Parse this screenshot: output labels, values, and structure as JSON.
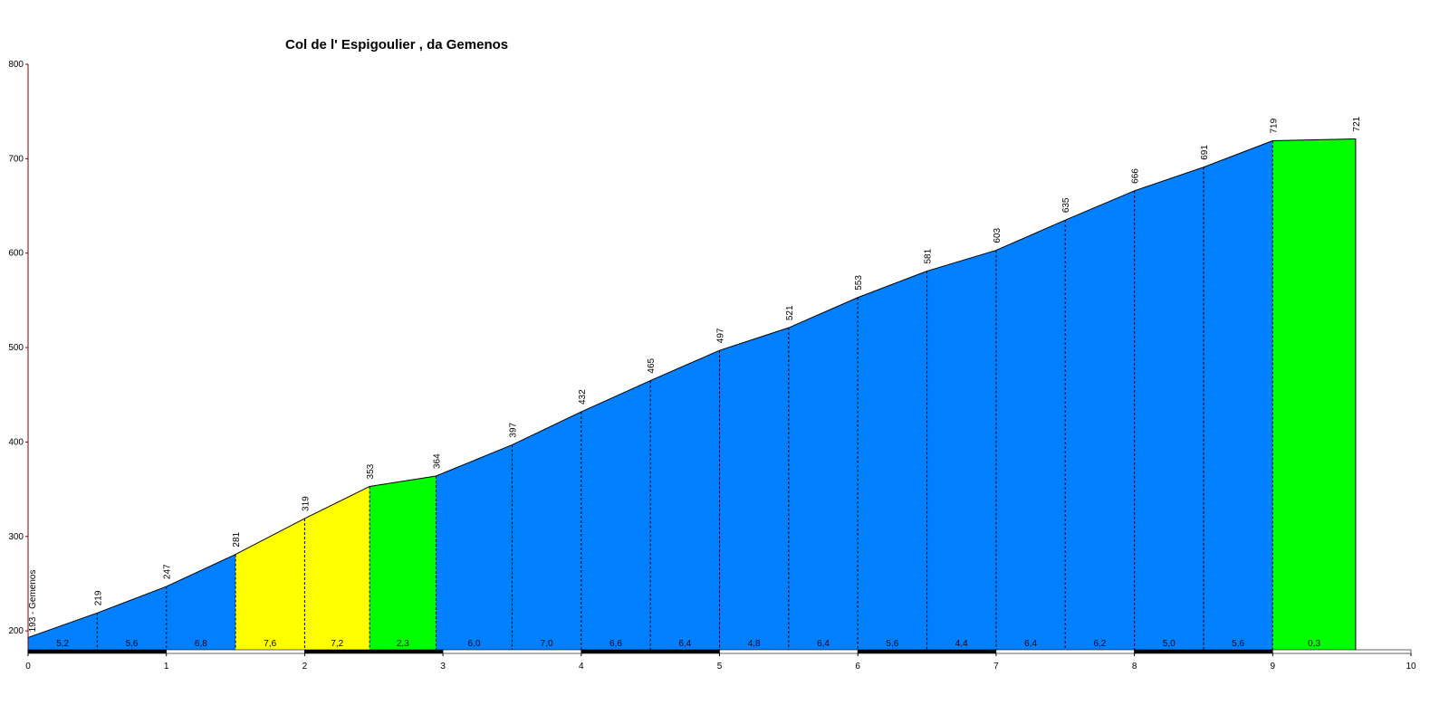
{
  "chart_data": {
    "type": "area",
    "title": "Col de l' Espigoulier , da Gemenos",
    "xlabel": "",
    "ylabel": "",
    "xlim": [
      0,
      10
    ],
    "ylim": [
      180,
      800
    ],
    "x_ticks": [
      "0",
      "1",
      "2",
      "3",
      "4",
      "5",
      "6",
      "7",
      "8",
      "9",
      "10"
    ],
    "y_ticks": [
      "200",
      "300",
      "400",
      "500",
      "600",
      "700",
      "800"
    ],
    "grid": false,
    "start_label": "193 - Gemenos",
    "distance_km": [
      0,
      0.5,
      1.0,
      1.5,
      2.0,
      2.47,
      2.95,
      3.5,
      4.0,
      4.5,
      5.0,
      5.5,
      6.0,
      6.5,
      7.0,
      7.5,
      8.0,
      8.5,
      9.0,
      9.6
    ],
    "elevation_m": [
      193,
      219,
      247,
      281,
      319,
      353,
      364,
      397,
      432,
      465,
      497,
      521,
      553,
      581,
      603,
      635,
      666,
      691,
      719,
      721
    ],
    "elevation_labels": [
      "219",
      "247",
      "281",
      "319",
      "353",
      "364",
      "397",
      "432",
      "465",
      "497",
      "521",
      "553",
      "581",
      "603",
      "635",
      "666",
      "691",
      "719",
      "721"
    ],
    "segments": [
      {
        "gradient": "5,2",
        "color": "#0080ff"
      },
      {
        "gradient": "5,6",
        "color": "#0080ff"
      },
      {
        "gradient": "6,8",
        "color": "#0080ff"
      },
      {
        "gradient": "7,6",
        "color": "#ffff00"
      },
      {
        "gradient": "7,2",
        "color": "#ffff00"
      },
      {
        "gradient": "2,3",
        "color": "#00ff00"
      },
      {
        "gradient": "6,0",
        "color": "#0080ff"
      },
      {
        "gradient": "7,0",
        "color": "#0080ff"
      },
      {
        "gradient": "6,6",
        "color": "#0080ff"
      },
      {
        "gradient": "6,4",
        "color": "#0080ff"
      },
      {
        "gradient": "4,8",
        "color": "#0080ff"
      },
      {
        "gradient": "6,4",
        "color": "#0080ff"
      },
      {
        "gradient": "5,6",
        "color": "#0080ff"
      },
      {
        "gradient": "4,4",
        "color": "#0080ff"
      },
      {
        "gradient": "6,4",
        "color": "#0080ff"
      },
      {
        "gradient": "6,2",
        "color": "#0080ff"
      },
      {
        "gradient": "5,0",
        "color": "#0080ff"
      },
      {
        "gradient": "5,6",
        "color": "#0080ff"
      },
      {
        "gradient": "0,3",
        "color": "#00ff00"
      }
    ],
    "axis_color": "#800000"
  }
}
